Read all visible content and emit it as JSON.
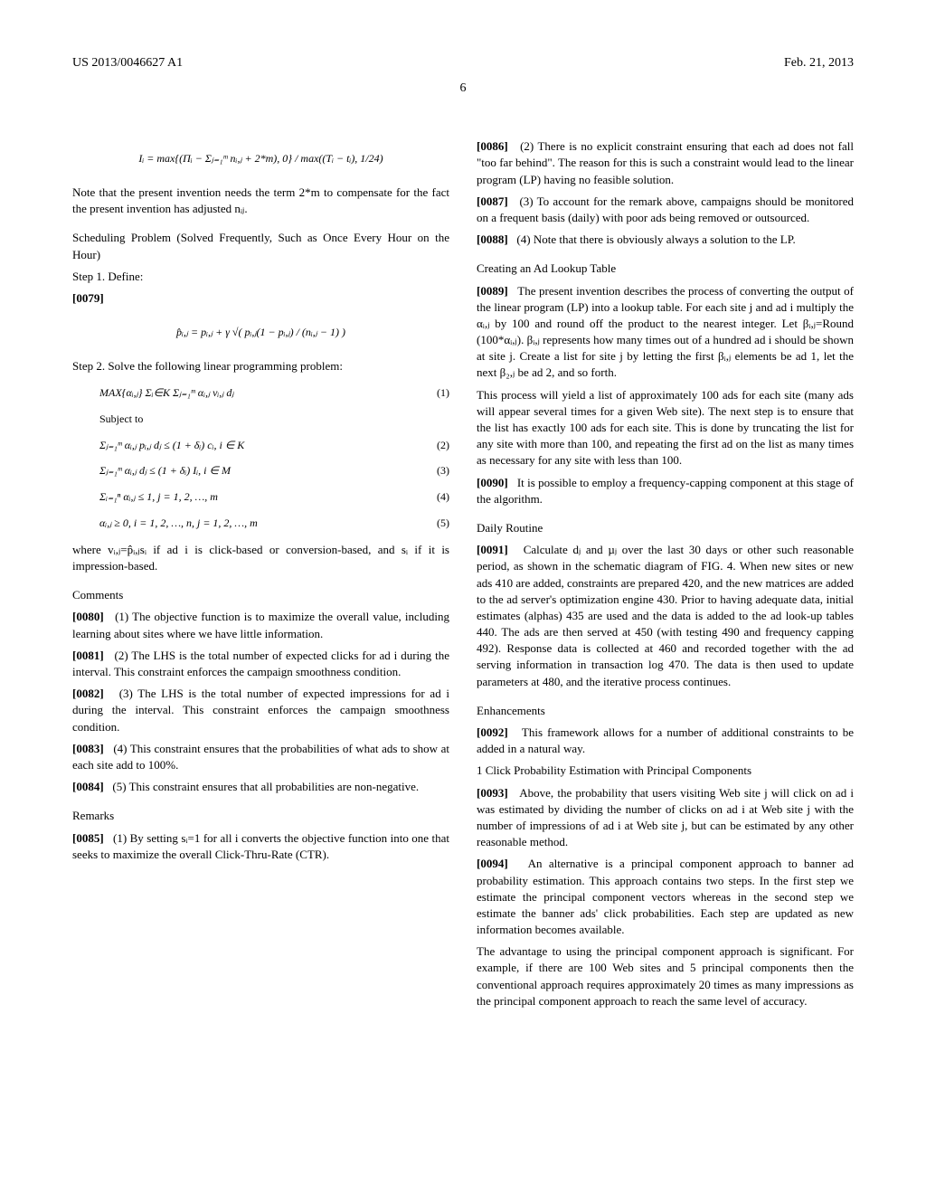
{
  "header": {
    "pub_id": "US 2013/0046627 A1",
    "date": "Feb. 21, 2013",
    "page_num": "6"
  },
  "left": {
    "formula_I": "Iᵢ = max{(Πᵢ − Σⱼ₌₁ᵐ nᵢ,ⱼ + 2*m), 0} / max((Tᵢ − tᵢ), 1/24)",
    "note_2m": "Note that the present invention needs the term 2*m to compensate for the fact the present invention has adjusted nᵢⱼ.",
    "sched_head": "Scheduling Problem (Solved Frequently, Such as Once Every Hour on the Hour)",
    "step1": "Step 1. Define:",
    "p0079_num": "[0079]",
    "formula_phat": "p̂ᵢ,ⱼ = pᵢ,ⱼ + γ √( pᵢ,ⱼ(1 − pᵢ,ⱼ) / (nᵢ,ⱼ − 1) )",
    "step2": "Step 2. Solve the following linear programming problem:",
    "eq1": "MAX{αᵢ,ⱼ} Σᵢ∈K Σⱼ₌₁ᵐ αᵢ,ⱼ vᵢ,ⱼ dⱼ",
    "subject": "Subject to",
    "eq2": "Σⱼ₌₁ᵐ αᵢ,ⱼ pᵢ,ⱼ dⱼ ≤ (1 + δᵢ) cᵢ,  i ∈ K",
    "eq3": "Σⱼ₌₁ᵐ αᵢ,ⱼ dⱼ ≤ (1 + δᵢ) Iᵢ,  i ∈ M",
    "eq4": "Σᵢ₌₁ⁿ αᵢ,ⱼ ≤ 1,  j = 1, 2, …, m",
    "eq5": "αᵢ,ⱼ ≥ 0,  i = 1, 2, …, n,  j = 1, 2, …, m",
    "where": "where vᵢ,ⱼ=p̂ᵢ,ⱼsᵢ if ad i is click-based or conversion-based, and sᵢ if it is impression-based.",
    "comments_head": "Comments",
    "p0080_num": "[0080]",
    "p0080": "(1) The objective function is to maximize the overall value, including learning about sites where we have little information.",
    "p0081_num": "[0081]",
    "p0081": "(2) The LHS is the total number of expected clicks for ad i during the interval. This constraint enforces the campaign smoothness condition.",
    "p0082_num": "[0082]",
    "p0082": "(3) The LHS is the total number of expected impressions for ad i during the interval. This constraint enforces the campaign smoothness condition.",
    "p0083_num": "[0083]",
    "p0083": "(4) This constraint ensures that the probabilities of what ads to show at each site add to 100%.",
    "p0084_num": "[0084]",
    "p0084": "(5) This constraint ensures that all probabilities are non-negative.",
    "remarks_head": "Remarks",
    "p0085_num": "[0085]",
    "p0085": "(1) By setting sᵢ=1 for all i converts the objective function into one that seeks to maximize the overall Click-Thru-Rate (CTR)."
  },
  "right": {
    "p0086_num": "[0086]",
    "p0086": "(2) There is no explicit constraint ensuring that each ad does not fall \"too far behind\". The reason for this is such a constraint would lead to the linear program (LP) having no feasible solution.",
    "p0087_num": "[0087]",
    "p0087": "(3) To account for the remark above, campaigns should be monitored on a frequent basis (daily) with poor ads being removed or outsourced.",
    "p0088_num": "[0088]",
    "p0088": "(4) Note that there is obviously always a solution to the LP.",
    "lookup_head": "Creating an Ad Lookup Table",
    "p0089_num": "[0089]",
    "p0089": "The present invention describes the process of converting the output of the linear program (LP) into a lookup table. For each site j and ad i multiply the αᵢ,ⱼ by 100 and round off the product to the nearest integer. Let βᵢ,ⱼ=Round (100*αᵢ,ⱼ). βᵢ,ⱼ represents how many times out of a hundred ad i should be shown at site j. Create a list for site j by letting the first βᵢ,ⱼ elements be ad 1, let the next β₂,ⱼ be ad 2, and so forth.",
    "p0089b": "This process will yield a list of approximately 100 ads for each site (many ads will appear several times for a given Web site). The next step is to ensure that the list has exactly 100 ads for each site. This is done by truncating the list for any site with more than 100, and repeating the first ad on the list as many times as necessary for any site with less than 100.",
    "p0090_num": "[0090]",
    "p0090": "It is possible to employ a frequency-capping component at this stage of the algorithm.",
    "daily_head": "Daily Routine",
    "p0091_num": "[0091]",
    "p0091": "Calculate dⱼ and µⱼ over the last 30 days or other such reasonable period, as shown in the schematic diagram of FIG. 4. When new sites or new ads 410 are added, constraints are prepared 420, and the new matrices are added to the ad server's optimization engine 430. Prior to having adequate data, initial estimates (alphas) 435 are used and the data is added to the ad look-up tables 440. The ads are then served at 450 (with testing 490 and frequency capping 492). Response data is collected at 460 and recorded together with the ad serving information in transaction log 470. The data is then used to update parameters at 480, and the iterative process continues.",
    "enh_head": "Enhancements",
    "p0092_num": "[0092]",
    "p0092": "This framework allows for a number of additional constraints to be added in a natural way.",
    "pc_head": "1 Click Probability Estimation with Principal Components",
    "p0093_num": "[0093]",
    "p0093": "Above, the probability that users visiting Web site j will click on ad i was estimated by dividing the number of clicks on ad i at Web site j with the number of impressions of ad i at Web site j, but can be estimated by any other reasonable method.",
    "p0094_num": "[0094]",
    "p0094": "An alternative is a principal component approach to banner ad probability estimation. This approach contains two steps. In the first step we estimate the principal component vectors whereas in the second step we estimate the banner ads' click probabilities. Each step are updated as new information becomes available.",
    "p0094b": "The advantage to using the principal component approach is significant. For example, if there are 100 Web sites and 5 principal components then the conventional approach requires approximately 20 times as many impressions as the principal component approach to reach the same level of accuracy."
  },
  "eqlabels": {
    "e1": "(1)",
    "e2": "(2)",
    "e3": "(3)",
    "e4": "(4)",
    "e5": "(5)"
  }
}
